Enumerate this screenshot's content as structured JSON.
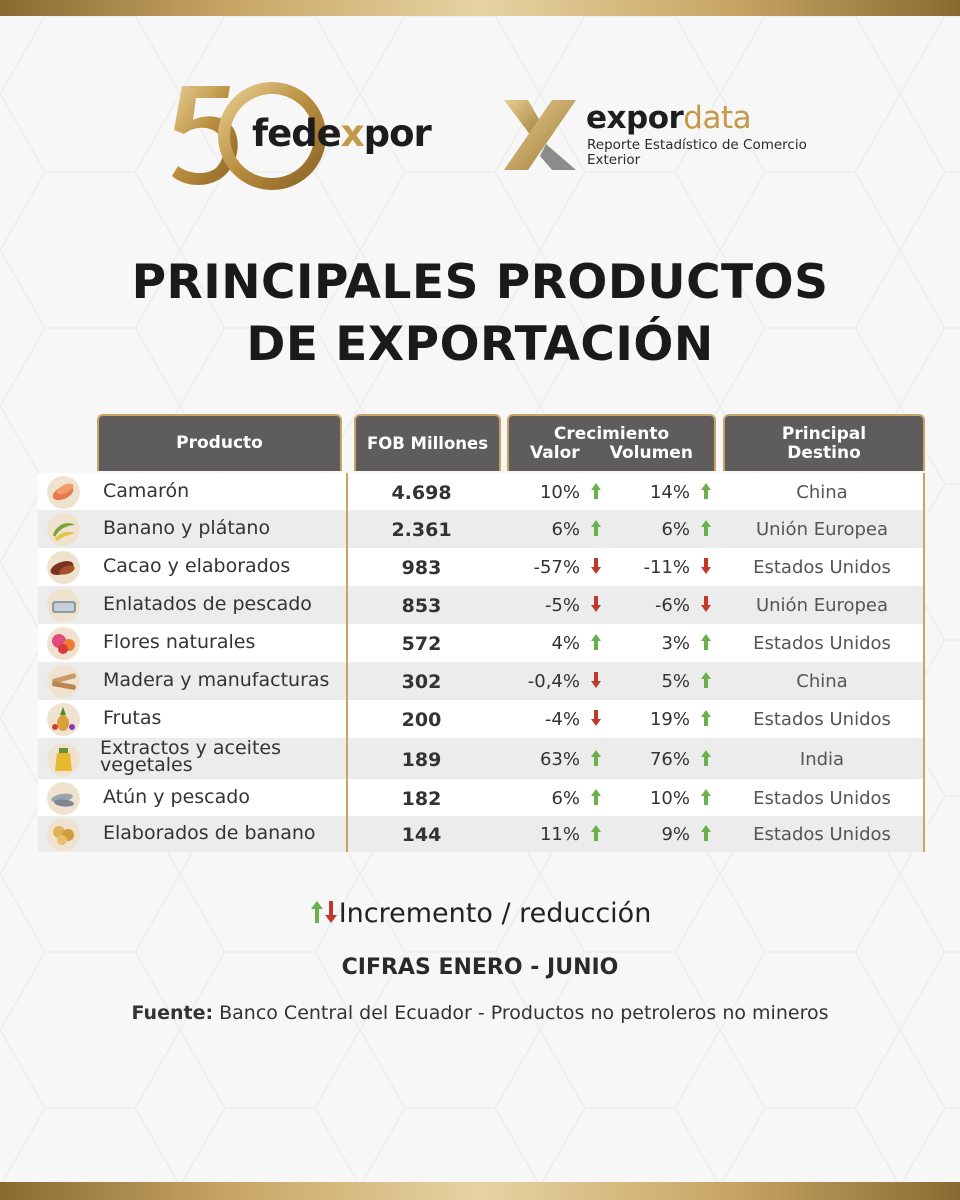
{
  "colors": {
    "gold": "#c8a565",
    "header_bg": "#5e5c5d",
    "up": "#6ab04c",
    "down": "#c0392b"
  },
  "logos": {
    "fedexpor": {
      "number": "50",
      "text_a": "fede",
      "text_x": "x",
      "text_b": "por"
    },
    "expordata": {
      "text_a": "expor",
      "text_b": "data",
      "subtitle": "Reporte Estadístico de Comercio Exterior"
    }
  },
  "title": {
    "line1": "PRINCIPALES PRODUCTOS",
    "line2": "DE EXPORTACIÓN"
  },
  "table": {
    "headers": {
      "producto": "Producto",
      "fob": "FOB Millones",
      "crecimiento": "Crecimiento",
      "valor": "Valor",
      "volumen": "Volumen",
      "destino_l1": "Principal",
      "destino_l2": "Destino"
    },
    "rows": [
      {
        "icon": "shrimp-icon",
        "producto": "Camarón",
        "fob": "4.698",
        "valor": "10%",
        "valor_dir": "up",
        "volumen": "14%",
        "volumen_dir": "up",
        "destino": "China"
      },
      {
        "icon": "banana-icon",
        "producto": "Banano y plátano",
        "fob": "2.361",
        "valor": "6%",
        "valor_dir": "up",
        "volumen": "6%",
        "volumen_dir": "up",
        "destino": "Unión Europea"
      },
      {
        "icon": "cacao-icon",
        "producto": "Cacao y elaborados",
        "fob": "983",
        "valor": "-57%",
        "valor_dir": "down",
        "volumen": "-11%",
        "volumen_dir": "down",
        "destino": "Estados Unidos"
      },
      {
        "icon": "canned-fish-icon",
        "producto": "Enlatados de pescado",
        "fob": "853",
        "valor": "-5%",
        "valor_dir": "down",
        "volumen": "-6%",
        "volumen_dir": "down",
        "destino": "Unión Europea"
      },
      {
        "icon": "flowers-icon",
        "producto": "Flores naturales",
        "fob": "572",
        "valor": "4%",
        "valor_dir": "up",
        "volumen": "3%",
        "volumen_dir": "up",
        "destino": "Estados Unidos"
      },
      {
        "icon": "wood-icon",
        "producto": "Madera y manufacturas",
        "fob": "302",
        "valor": "-0,4%",
        "valor_dir": "down",
        "volumen": "5%",
        "volumen_dir": "up",
        "destino": "China"
      },
      {
        "icon": "fruits-icon",
        "producto": "Frutas",
        "fob": "200",
        "valor": "-4%",
        "valor_dir": "down",
        "volumen": "19%",
        "volumen_dir": "up",
        "destino": "Estados Unidos"
      },
      {
        "icon": "oil-bottle-icon",
        "producto": "Extractos y aceites vegetales",
        "fob": "189",
        "valor": "63%",
        "valor_dir": "up",
        "volumen": "76%",
        "volumen_dir": "up",
        "destino": "India"
      },
      {
        "icon": "fish-icon",
        "producto": "Atún y pescado",
        "fob": "182",
        "valor": "6%",
        "valor_dir": "up",
        "volumen": "10%",
        "volumen_dir": "up",
        "destino": "Estados Unidos"
      },
      {
        "icon": "banana-chips-icon",
        "producto": "Elaborados de banano",
        "fob": "144",
        "valor": "11%",
        "valor_dir": "up",
        "volumen": "9%",
        "volumen_dir": "up",
        "destino": "Estados Unidos"
      }
    ]
  },
  "legend": {
    "text": "Incremento / reducción"
  },
  "period": "CIFRAS ENERO - JUNIO",
  "source": {
    "label": "Fuente:",
    "text": " Banco Central del Ecuador - Productos no petroleros no mineros"
  }
}
